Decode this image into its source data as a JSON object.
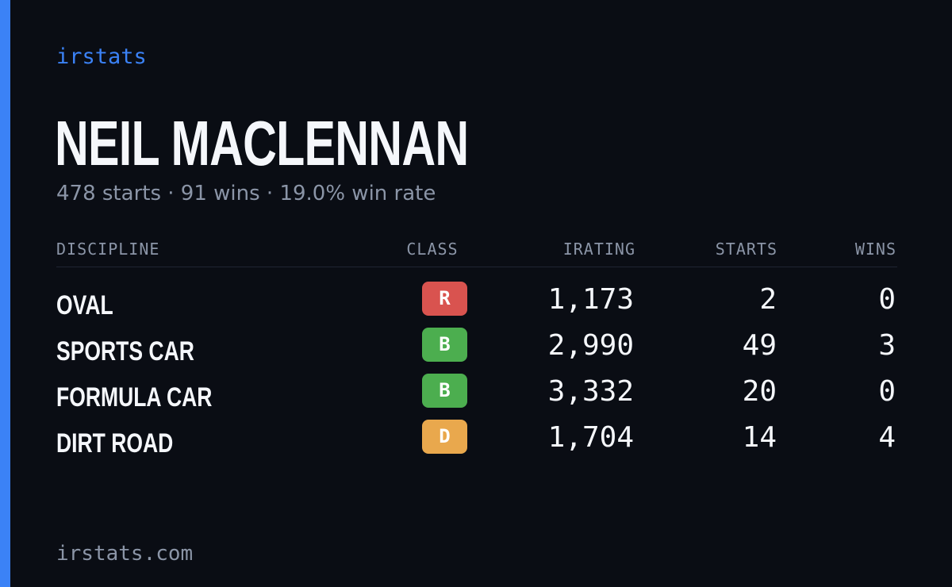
{
  "brand": "irstats",
  "driver": {
    "name": "NEIL MACLENNAN",
    "summary": "478 starts · 91 wins · 19.0% win rate"
  },
  "table": {
    "headers": {
      "discipline": "DISCIPLINE",
      "class": "CLASS",
      "irating": "IRATING",
      "starts": "STARTS",
      "wins": "WINS"
    },
    "rows": [
      {
        "discipline": "OVAL",
        "class": "R",
        "irating": "1,173",
        "starts": "2",
        "wins": "0"
      },
      {
        "discipline": "SPORTS CAR",
        "class": "B",
        "irating": "2,990",
        "starts": "49",
        "wins": "3"
      },
      {
        "discipline": "FORMULA CAR",
        "class": "B",
        "irating": "3,332",
        "starts": "20",
        "wins": "0"
      },
      {
        "discipline": "DIRT ROAD",
        "class": "D",
        "irating": "1,704",
        "starts": "14",
        "wins": "4"
      }
    ]
  },
  "colors": {
    "accent": "#3b82f6",
    "class_R": "#d9534f",
    "class_B": "#4cae4f",
    "class_D": "#e9a84d"
  },
  "footer": "irstats.com"
}
